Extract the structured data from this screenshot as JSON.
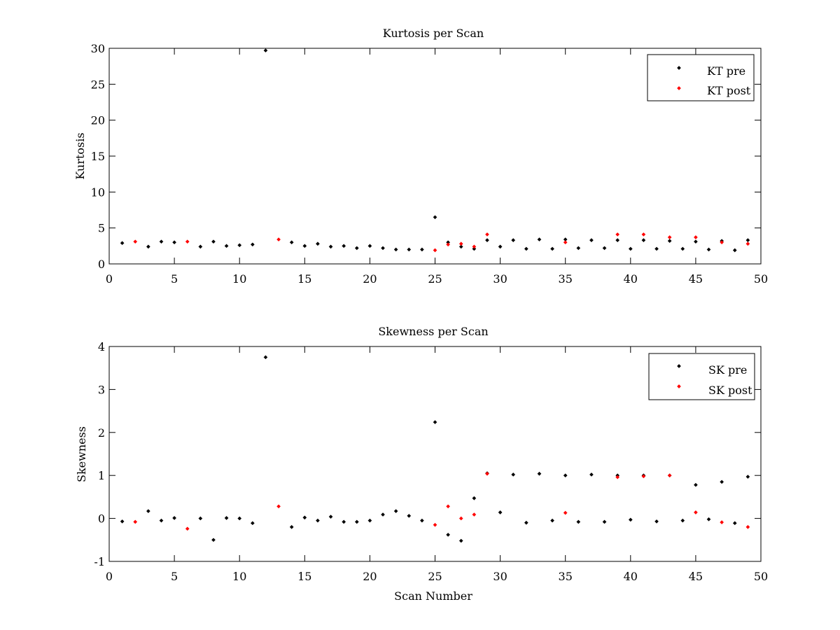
{
  "chart_data": [
    {
      "type": "scatter",
      "title": "Kurtosis per Scan",
      "xlabel": "",
      "ylabel": "Kurtosis",
      "xlim": [
        0,
        50
      ],
      "ylim": [
        0,
        30
      ],
      "xticks": [
        0,
        5,
        10,
        15,
        20,
        25,
        30,
        35,
        40,
        45,
        50
      ],
      "yticks": [
        0,
        5,
        10,
        15,
        20,
        25,
        30
      ],
      "grid": false,
      "legend_position": "top-right",
      "series": [
        {
          "name": "KT pre",
          "color": "#000000",
          "points": [
            [
              1,
              2.9
            ],
            [
              3,
              2.4
            ],
            [
              4,
              3.1
            ],
            [
              5,
              3.0
            ],
            [
              7,
              2.4
            ],
            [
              8,
              3.1
            ],
            [
              9,
              2.5
            ],
            [
              10,
              2.6
            ],
            [
              11,
              2.7
            ],
            [
              12,
              29.7
            ],
            [
              14,
              3.0
            ],
            [
              15,
              2.5
            ],
            [
              16,
              2.8
            ],
            [
              17,
              2.4
            ],
            [
              18,
              2.5
            ],
            [
              19,
              2.2
            ],
            [
              20,
              2.5
            ],
            [
              21,
              2.2
            ],
            [
              22,
              2.0
            ],
            [
              23,
              2.0
            ],
            [
              24,
              2.0
            ],
            [
              25,
              6.5
            ],
            [
              26,
              3.0
            ],
            [
              27,
              2.4
            ],
            [
              28,
              2.1
            ],
            [
              29,
              3.3
            ],
            [
              30,
              2.4
            ],
            [
              31,
              3.3
            ],
            [
              32,
              2.1
            ],
            [
              33,
              3.4
            ],
            [
              34,
              2.1
            ],
            [
              35,
              3.4
            ],
            [
              36,
              2.2
            ],
            [
              37,
              3.3
            ],
            [
              38,
              2.2
            ],
            [
              39,
              3.3
            ],
            [
              40,
              2.1
            ],
            [
              41,
              3.3
            ],
            [
              42,
              2.1
            ],
            [
              43,
              3.2
            ],
            [
              44,
              2.1
            ],
            [
              45,
              3.1
            ],
            [
              46,
              2.0
            ],
            [
              47,
              3.2
            ],
            [
              48,
              1.9
            ],
            [
              49,
              3.3
            ]
          ]
        },
        {
          "name": "KT post",
          "color": "#ff0000",
          "points": [
            [
              2,
              3.1
            ],
            [
              6,
              3.1
            ],
            [
              13,
              3.4
            ],
            [
              25,
              1.9
            ],
            [
              26,
              2.7
            ],
            [
              27,
              2.8
            ],
            [
              28,
              2.4
            ],
            [
              29,
              4.1
            ],
            [
              35,
              3.0
            ],
            [
              39,
              4.1
            ],
            [
              41,
              4.1
            ],
            [
              43,
              3.7
            ],
            [
              45,
              3.7
            ],
            [
              47,
              3.0
            ],
            [
              49,
              2.8
            ]
          ]
        }
      ]
    },
    {
      "type": "scatter",
      "title": "Skewness per Scan",
      "xlabel": "Scan Number",
      "ylabel": "Skewness",
      "xlim": [
        0,
        50
      ],
      "ylim": [
        -1,
        4
      ],
      "xticks": [
        0,
        5,
        10,
        15,
        20,
        25,
        30,
        35,
        40,
        45,
        50
      ],
      "yticks": [
        -1,
        0,
        1,
        2,
        3,
        4
      ],
      "grid": false,
      "legend_position": "top-right",
      "series": [
        {
          "name": "SK pre",
          "color": "#000000",
          "points": [
            [
              1,
              -0.07
            ],
            [
              3,
              0.17
            ],
            [
              4,
              -0.05
            ],
            [
              5,
              0.01
            ],
            [
              7,
              0.0
            ],
            [
              8,
              -0.5
            ],
            [
              9,
              0.01
            ],
            [
              10,
              0.0
            ],
            [
              11,
              -0.11
            ],
            [
              12,
              3.75
            ],
            [
              14,
              -0.2
            ],
            [
              15,
              0.02
            ],
            [
              16,
              -0.05
            ],
            [
              17,
              0.04
            ],
            [
              18,
              -0.08
            ],
            [
              19,
              -0.08
            ],
            [
              20,
              -0.05
            ],
            [
              21,
              0.09
            ],
            [
              22,
              0.17
            ],
            [
              23,
              0.06
            ],
            [
              24,
              -0.05
            ],
            [
              25,
              2.24
            ],
            [
              26,
              -0.38
            ],
            [
              27,
              -0.52
            ],
            [
              28,
              0.47
            ],
            [
              29,
              1.05
            ],
            [
              30,
              0.14
            ],
            [
              31,
              1.02
            ],
            [
              32,
              -0.1
            ],
            [
              33,
              1.04
            ],
            [
              34,
              -0.05
            ],
            [
              35,
              1.0
            ],
            [
              36,
              -0.08
            ],
            [
              37,
              1.02
            ],
            [
              38,
              -0.08
            ],
            [
              39,
              1.0
            ],
            [
              40,
              -0.03
            ],
            [
              41,
              1.0
            ],
            [
              42,
              -0.07
            ],
            [
              43,
              1.0
            ],
            [
              44,
              -0.05
            ],
            [
              45,
              0.78
            ],
            [
              46,
              -0.02
            ],
            [
              47,
              0.85
            ],
            [
              48,
              -0.11
            ],
            [
              49,
              0.97
            ]
          ]
        },
        {
          "name": "SK post",
          "color": "#ff0000",
          "points": [
            [
              2,
              -0.08
            ],
            [
              6,
              -0.24
            ],
            [
              13,
              0.28
            ],
            [
              25,
              -0.15
            ],
            [
              26,
              0.28
            ],
            [
              27,
              0.0
            ],
            [
              28,
              0.09
            ],
            [
              29,
              1.04
            ],
            [
              35,
              0.13
            ],
            [
              39,
              0.96
            ],
            [
              41,
              0.98
            ],
            [
              43,
              1.0
            ],
            [
              45,
              0.14
            ],
            [
              47,
              -0.09
            ],
            [
              49,
              -0.2
            ]
          ]
        }
      ]
    }
  ]
}
